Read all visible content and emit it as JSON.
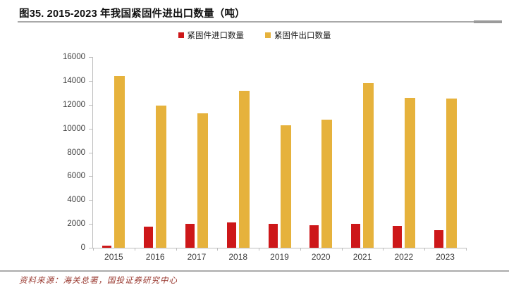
{
  "figure": {
    "title": "图35. 2015-2023 年我国紧固件进出口数量（吨）",
    "source_note": "资料来源：海关总署，国投证券研究中心"
  },
  "colors": {
    "import_red": "#cd1719",
    "export_gold": "#e6b23c",
    "axis": "#bdbdbd",
    "tick_label": "#3f3f3f",
    "source_text": "#99382f"
  },
  "chart_data": {
    "type": "bar",
    "categories": [
      "2015",
      "2016",
      "2017",
      "2018",
      "2019",
      "2020",
      "2021",
      "2022",
      "2023"
    ],
    "series": [
      {
        "name": "紧固件进口数量",
        "color": "#cd1719",
        "values": [
          150,
          1750,
          2000,
          2100,
          2000,
          1900,
          2000,
          1850,
          1450
        ]
      },
      {
        "name": "紧固件出口数量",
        "color": "#e6b23c",
        "values": [
          14400,
          11900,
          11300,
          13150,
          10300,
          10750,
          13800,
          12600,
          12500
        ]
      }
    ],
    "title": "图35. 2015-2023 年我国紧固件进出口数量（吨）",
    "xlabel": "",
    "ylabel": "",
    "ylim": [
      0,
      16000
    ],
    "ytick_step": 2000,
    "grid": false,
    "legend_position": "top-center"
  }
}
